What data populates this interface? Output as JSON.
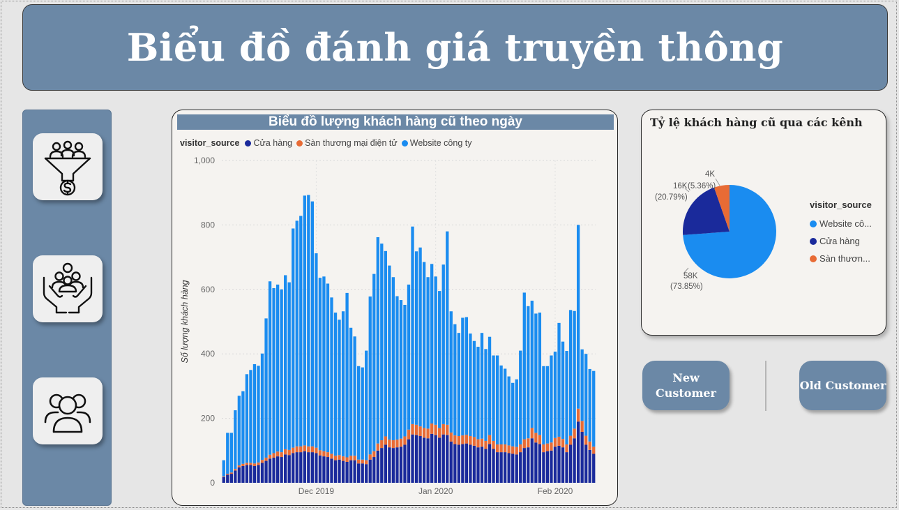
{
  "header": {
    "title": "Biểu đồ đánh giá truyền thông"
  },
  "sidebar": {
    "items": [
      {
        "icon": "funnel-customers-dollar-icon"
      },
      {
        "icon": "hands-holding-people-icon"
      },
      {
        "icon": "user-group-icon"
      }
    ]
  },
  "buttons": {
    "new_customer": "New Customer",
    "old_customer": "Old Customer"
  },
  "colors": {
    "store": "#1a2a9b",
    "marketplace": "#e86b35",
    "website": "#1a8cf0",
    "panel": "#6b88a6"
  },
  "chart_data": [
    {
      "type": "bar",
      "stacked": true,
      "title": "Biểu đồ lượng khách hàng cũ theo ngày",
      "legend_title": "visitor_source",
      "legend_position": "top-left",
      "xlabel": "",
      "ylabel": "Số lượng khách hàng",
      "ylim": [
        0,
        1000
      ],
      "yticks": [
        "0",
        "200",
        "400",
        "600",
        "800",
        "1,000"
      ],
      "xticks": [
        {
          "label": "Dec 2019",
          "index": 24
        },
        {
          "label": "Jan 2020",
          "index": 55
        },
        {
          "label": "Feb 2020",
          "index": 86
        }
      ],
      "grid": true,
      "series": [
        {
          "name": "Cửa hàng",
          "color": "#1a2a9b",
          "values": [
            18,
            25,
            28,
            38,
            48,
            52,
            55,
            55,
            52,
            55,
            62,
            68,
            75,
            78,
            82,
            80,
            88,
            86,
            92,
            95,
            95,
            98,
            95,
            95,
            92,
            85,
            82,
            80,
            75,
            70,
            72,
            68,
            65,
            70,
            70,
            60,
            60,
            58,
            72,
            80,
            100,
            108,
            118,
            110,
            108,
            110,
            112,
            118,
            135,
            150,
            148,
            145,
            140,
            138,
            152,
            148,
            140,
            150,
            148,
            128,
            120,
            118,
            120,
            122,
            118,
            115,
            110,
            112,
            105,
            120,
            105,
            95,
            95,
            95,
            92,
            90,
            88,
            95,
            108,
            110,
            138,
            125,
            120,
            95,
            98,
            100,
            112,
            115,
            110,
            95,
            118,
            138,
            190,
            158,
            118,
            102,
            90
          ]
        },
        {
          "name": "Sàn thương mại điện tử",
          "color": "#e86b35",
          "values": [
            2,
            3,
            4,
            5,
            6,
            7,
            7,
            7,
            8,
            8,
            9,
            10,
            12,
            14,
            15,
            15,
            16,
            16,
            17,
            18,
            18,
            18,
            18,
            18,
            17,
            16,
            16,
            15,
            15,
            14,
            14,
            14,
            14,
            14,
            14,
            12,
            12,
            12,
            16,
            18,
            22,
            24,
            26,
            24,
            24,
            24,
            25,
            26,
            30,
            32,
            32,
            30,
            30,
            30,
            32,
            32,
            30,
            32,
            32,
            28,
            27,
            27,
            27,
            27,
            27,
            27,
            25,
            25,
            25,
            28,
            25,
            24,
            24,
            24,
            24,
            23,
            23,
            24,
            27,
            28,
            32,
            30,
            28,
            24,
            24,
            25,
            27,
            28,
            26,
            24,
            28,
            30,
            40,
            34,
            28,
            26,
            22
          ]
        },
        {
          "name": "Website công ty",
          "color": "#1a8cf0",
          "values": [
            50,
            127,
            123,
            182,
            216,
            225,
            275,
            288,
            308,
            300,
            330,
            432,
            538,
            512,
            518,
            505,
            540,
            520,
            680,
            700,
            715,
            775,
            780,
            760,
            603,
            535,
            542,
            523,
            485,
            444,
            420,
            450,
            510,
            397,
            370,
            290,
            286,
            340,
            490,
            550,
            640,
            610,
            575,
            540,
            506,
            445,
            430,
            408,
            450,
            613,
            538,
            555,
            515,
            470,
            495,
            460,
            425,
            495,
            600,
            376,
            345,
            320,
            365,
            365,
            318,
            298,
            287,
            328,
            285,
            305,
            265,
            276,
            245,
            235,
            214,
            197,
            210,
            291,
            455,
            410,
            395,
            370,
            380,
            243,
            240,
            270,
            268,
            353,
            302,
            290,
            390,
            365,
            570,
            222,
            254,
            225,
            235
          ]
        }
      ]
    },
    {
      "type": "pie",
      "title": "Tỷ lệ khách hàng cũ qua các kênh",
      "legend_title": "visitor_source",
      "legend_position": "right",
      "slices": [
        {
          "name": "Website công ty",
          "legend_label": "Website cô...",
          "value": 58000,
          "percent": 73.85,
          "value_label": "58K",
          "percent_label": "(73.85%)",
          "color": "#1a8cf0"
        },
        {
          "name": "Cửa hàng",
          "legend_label": "Cửa hàng",
          "value": 16000,
          "percent": 20.79,
          "value_label": "16K",
          "percent_label": "(20.79%)",
          "color": "#1a2a9b"
        },
        {
          "name": "Sàn thương mại điện tử",
          "legend_label": "Sàn thươn...",
          "value": 4000,
          "percent": 5.36,
          "value_label": "4K",
          "percent_label": "(5.36%)",
          "color": "#e86b35"
        }
      ]
    }
  ]
}
